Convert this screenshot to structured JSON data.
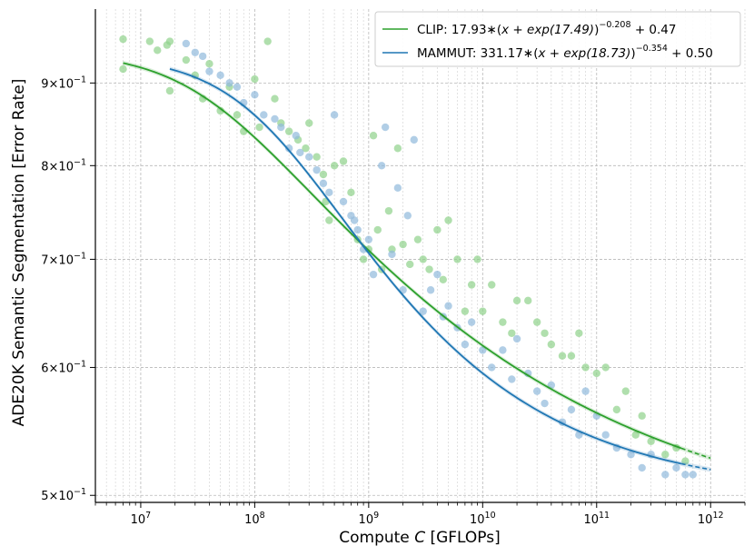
{
  "chart_data": {
    "type": "scatter",
    "title": "",
    "xlabel_prefix": "Compute ",
    "xlabel_var": "C",
    "xlabel_suffix": " [GFLOPs]",
    "ylabel": "ADE20K Semantic Segmentation [Error Rate]",
    "xscale": "log",
    "yscale": "log",
    "xlim": [
      4000000.0,
      2000000000000.0
    ],
    "ylim": [
      0.495,
      1.0
    ],
    "x_ticks": [
      {
        "value": 10000000.0,
        "base": "10",
        "exp": "7"
      },
      {
        "value": 100000000.0,
        "base": "10",
        "exp": "8"
      },
      {
        "value": 1000000000.0,
        "base": "10",
        "exp": "9"
      },
      {
        "value": 10000000000.0,
        "base": "10",
        "exp": "10"
      },
      {
        "value": 100000000000.0,
        "base": "10",
        "exp": "11"
      },
      {
        "value": 1000000000000.0,
        "base": "10",
        "exp": "12"
      }
    ],
    "y_ticks": [
      {
        "value": 0.5,
        "mant": "5",
        "base": "×10",
        "exp": "−1"
      },
      {
        "value": 0.6,
        "mant": "6",
        "base": "×10",
        "exp": "−1"
      },
      {
        "value": 0.7,
        "mant": "7",
        "base": "×10",
        "exp": "−1"
      },
      {
        "value": 0.8,
        "mant": "8",
        "base": "×10",
        "exp": "−1"
      },
      {
        "value": 0.9,
        "mant": "9",
        "base": "×10",
        "exp": "−1"
      }
    ],
    "legend_position": "top-right",
    "series": [
      {
        "name": "CLIP",
        "legend_prefix": "CLIP: 17.93∗(",
        "legend_expr": "x + exp(17.49)",
        "legend_exp": "−0.208",
        "legend_suffix": " + 0.47",
        "color": "#2ca02c",
        "point_color": "#8fd18a",
        "fit": {
          "A": 17.93,
          "x0_log": 17.49,
          "alpha": 0.208,
          "E": 0.47
        },
        "fit_range": [
          7000000.0,
          1000000000000.0
        ],
        "extrapolate_from": 550000000000.0,
        "points": [
          [
            7000000.0,
            0.958
          ],
          [
            7000000.0,
            0.918
          ],
          [
            12000000.0,
            0.955
          ],
          [
            14000000.0,
            0.943
          ],
          [
            17000000.0,
            0.95
          ],
          [
            18000000.0,
            0.955
          ],
          [
            18000000.0,
            0.89
          ],
          [
            25000000.0,
            0.93
          ],
          [
            30000000.0,
            0.91
          ],
          [
            35000000.0,
            0.88
          ],
          [
            40000000.0,
            0.925
          ],
          [
            50000000.0,
            0.865
          ],
          [
            60000000.0,
            0.895
          ],
          [
            70000000.0,
            0.86
          ],
          [
            80000000.0,
            0.84
          ],
          [
            100000000.0,
            0.905
          ],
          [
            110000000.0,
            0.845
          ],
          [
            130000000.0,
            0.955
          ],
          [
            150000000.0,
            0.88
          ],
          [
            170000000.0,
            0.85
          ],
          [
            200000000.0,
            0.84
          ],
          [
            240000000.0,
            0.83
          ],
          [
            280000000.0,
            0.82
          ],
          [
            300000000.0,
            0.85
          ],
          [
            350000000.0,
            0.81
          ],
          [
            400000000.0,
            0.79
          ],
          [
            420000000.0,
            0.76
          ],
          [
            450000000.0,
            0.74
          ],
          [
            500000000.0,
            0.8
          ],
          [
            600000000.0,
            0.805
          ],
          [
            700000000.0,
            0.77
          ],
          [
            800000000.0,
            0.72
          ],
          [
            900000000.0,
            0.7
          ],
          [
            1000000000.0,
            0.71
          ],
          [
            1100000000.0,
            0.835
          ],
          [
            1200000000.0,
            0.73
          ],
          [
            1300000000.0,
            0.69
          ],
          [
            1500000000.0,
            0.75
          ],
          [
            1600000000.0,
            0.71
          ],
          [
            1800000000.0,
            0.82
          ],
          [
            2000000000.0,
            0.715
          ],
          [
            2300000000.0,
            0.695
          ],
          [
            2700000000.0,
            0.72
          ],
          [
            3000000000.0,
            0.7
          ],
          [
            3400000000.0,
            0.69
          ],
          [
            4000000000.0,
            0.73
          ],
          [
            4500000000.0,
            0.68
          ],
          [
            5000000000.0,
            0.74
          ],
          [
            6000000000.0,
            0.7
          ],
          [
            7000000000.0,
            0.65
          ],
          [
            8000000000.0,
            0.675
          ],
          [
            9000000000.0,
            0.7
          ],
          [
            10000000000.0,
            0.65
          ],
          [
            12000000000.0,
            0.675
          ],
          [
            15000000000.0,
            0.64
          ],
          [
            18000000000.0,
            0.63
          ],
          [
            20000000000.0,
            0.66
          ],
          [
            25000000000.0,
            0.66
          ],
          [
            30000000000.0,
            0.64
          ],
          [
            35000000000.0,
            0.63
          ],
          [
            40000000000.0,
            0.62
          ],
          [
            50000000000.0,
            0.61
          ],
          [
            60000000000.0,
            0.61
          ],
          [
            70000000000.0,
            0.63
          ],
          [
            80000000000.0,
            0.6
          ],
          [
            100000000000.0,
            0.595
          ],
          [
            120000000000.0,
            0.6
          ],
          [
            150000000000.0,
            0.565
          ],
          [
            180000000000.0,
            0.58
          ],
          [
            220000000000.0,
            0.545
          ],
          [
            250000000000.0,
            0.56
          ],
          [
            300000000000.0,
            0.54
          ],
          [
            400000000000.0,
            0.53
          ],
          [
            500000000000.0,
            0.535
          ],
          [
            600000000000.0,
            0.525
          ]
        ]
      },
      {
        "name": "MAMMUT",
        "legend_prefix": "MAMMUT: 331.17∗(",
        "legend_expr": "x + exp(18.73)",
        "legend_exp": "−0.354",
        "legend_suffix": " + 0.50",
        "color": "#1f77b4",
        "point_color": "#90b9dc",
        "fit": {
          "A": 331.17,
          "x0_log": 18.73,
          "alpha": 0.354,
          "E": 0.5
        },
        "fit_range": [
          18000000.0,
          1000000000000.0
        ],
        "extrapolate_from": 550000000000.0,
        "points": [
          [
            25000000.0,
            0.952
          ],
          [
            30000000.0,
            0.94
          ],
          [
            35000000.0,
            0.935
          ],
          [
            40000000.0,
            0.915
          ],
          [
            50000000.0,
            0.91
          ],
          [
            60000000.0,
            0.9
          ],
          [
            70000000.0,
            0.895
          ],
          [
            80000000.0,
            0.875
          ],
          [
            100000000.0,
            0.885
          ],
          [
            120000000.0,
            0.86
          ],
          [
            150000000.0,
            0.855
          ],
          [
            170000000.0,
            0.845
          ],
          [
            200000000.0,
            0.82
          ],
          [
            230000000.0,
            0.835
          ],
          [
            250000000.0,
            0.815
          ],
          [
            300000000.0,
            0.81
          ],
          [
            350000000.0,
            0.795
          ],
          [
            400000000.0,
            0.78
          ],
          [
            450000000.0,
            0.77
          ],
          [
            500000000.0,
            0.86
          ],
          [
            600000000.0,
            0.76
          ],
          [
            700000000.0,
            0.745
          ],
          [
            750000000.0,
            0.74
          ],
          [
            800000000.0,
            0.73
          ],
          [
            900000000.0,
            0.71
          ],
          [
            1000000000.0,
            0.72
          ],
          [
            1100000000.0,
            0.685
          ],
          [
            1300000000.0,
            0.8
          ],
          [
            1400000000.0,
            0.845
          ],
          [
            1600000000.0,
            0.705
          ],
          [
            1800000000.0,
            0.775
          ],
          [
            2000000000.0,
            0.67
          ],
          [
            2200000000.0,
            0.745
          ],
          [
            2500000000.0,
            0.83
          ],
          [
            3000000000.0,
            0.65
          ],
          [
            3500000000.0,
            0.67
          ],
          [
            4000000000.0,
            0.685
          ],
          [
            4500000000.0,
            0.645
          ],
          [
            5000000000.0,
            0.655
          ],
          [
            6000000000.0,
            0.635
          ],
          [
            7000000000.0,
            0.62
          ],
          [
            8000000000.0,
            0.64
          ],
          [
            10000000000.0,
            0.615
          ],
          [
            12000000000.0,
            0.6
          ],
          [
            15000000000.0,
            0.615
          ],
          [
            18000000000.0,
            0.59
          ],
          [
            20000000000.0,
            0.625
          ],
          [
            25000000000.0,
            0.595
          ],
          [
            30000000000.0,
            0.58
          ],
          [
            35000000000.0,
            0.57
          ],
          [
            40000000000.0,
            0.585
          ],
          [
            50000000000.0,
            0.555
          ],
          [
            60000000000.0,
            0.565
          ],
          [
            70000000000.0,
            0.545
          ],
          [
            80000000000.0,
            0.58
          ],
          [
            100000000000.0,
            0.56
          ],
          [
            120000000000.0,
            0.545
          ],
          [
            150000000000.0,
            0.535
          ],
          [
            200000000000.0,
            0.53
          ],
          [
            250000000000.0,
            0.52
          ],
          [
            300000000000.0,
            0.53
          ],
          [
            400000000000.0,
            0.515
          ],
          [
            500000000000.0,
            0.52
          ],
          [
            600000000000.0,
            0.515
          ],
          [
            700000000000.0,
            0.515
          ]
        ]
      }
    ]
  }
}
